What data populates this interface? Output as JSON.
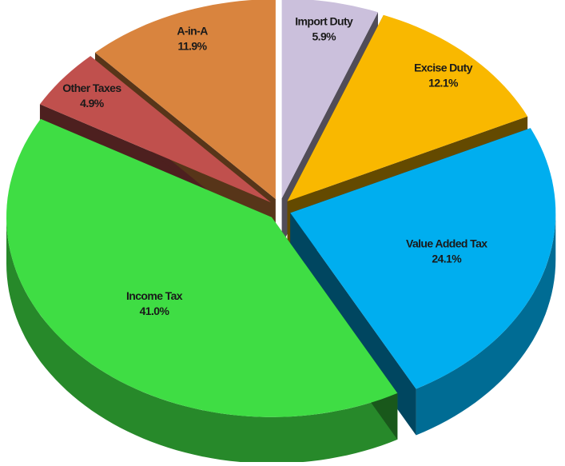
{
  "chart_data": {
    "type": "pie3d",
    "categories": [
      "Import Duty",
      "Excise Duty",
      "Value Added Tax",
      "Income Tax",
      "Other Taxes",
      "A-in-A"
    ],
    "values": [
      5.9,
      12.1,
      24.1,
      41.0,
      4.9,
      11.9
    ],
    "value_labels": [
      "5.9%",
      "12.1%",
      "24.1%",
      "41.0%",
      "4.9%",
      "11.9%"
    ],
    "colors": [
      "#cbc0dc",
      "#f9b800",
      "#00aeef",
      "#3fdd44",
      "#c0504d",
      "#d9843e"
    ]
  }
}
